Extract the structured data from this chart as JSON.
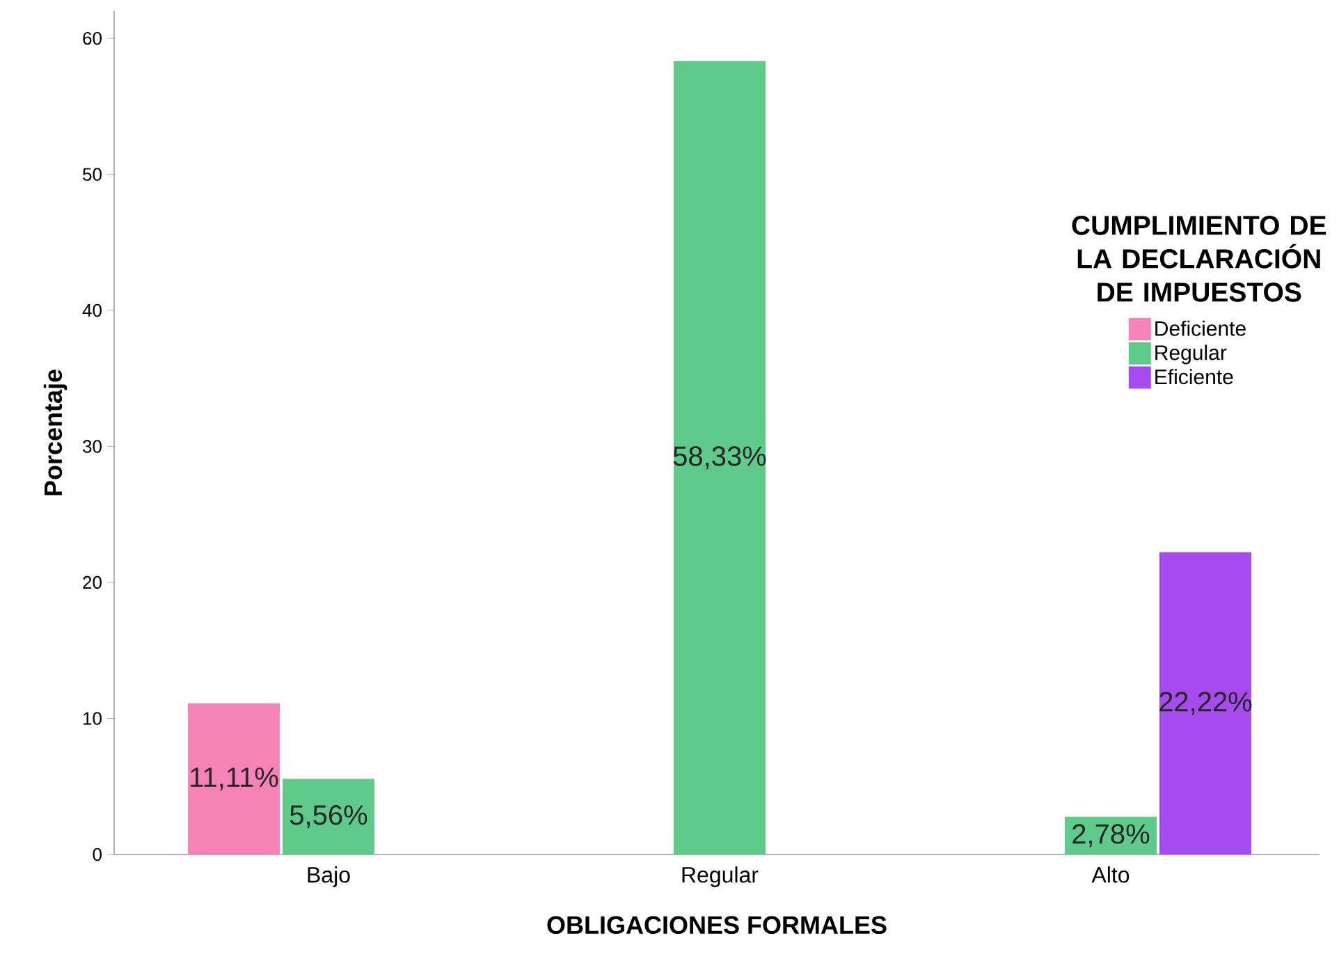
{
  "chart_data": {
    "type": "bar",
    "xlabel": "OBLIGACIONES FORMALES",
    "ylabel": "Porcentaje",
    "legend_title": "CUMPLIMIENTO DE LA DECLARACIÓN DE IMPUESTOS",
    "categories": [
      "Bajo",
      "Regular",
      "Alto"
    ],
    "series": [
      {
        "name": "Deficiente",
        "color": "#f683b5",
        "values": [
          11.11,
          null,
          null
        ],
        "value_labels": [
          "11,11%",
          null,
          null
        ]
      },
      {
        "name": "Regular",
        "color": "#5ecb8b",
        "values": [
          5.56,
          58.33,
          2.78
        ],
        "value_labels": [
          "5,56%",
          "58,33%",
          "2,78%"
        ]
      },
      {
        "name": "Eficiente",
        "color": "#a64cee",
        "values": [
          null,
          null,
          22.22
        ],
        "value_labels": [
          null,
          null,
          "22,22%"
        ]
      }
    ],
    "ylim": [
      0,
      62
    ],
    "yticks": [
      0,
      10,
      20,
      30,
      40,
      50,
      60
    ],
    "legend": "right"
  }
}
